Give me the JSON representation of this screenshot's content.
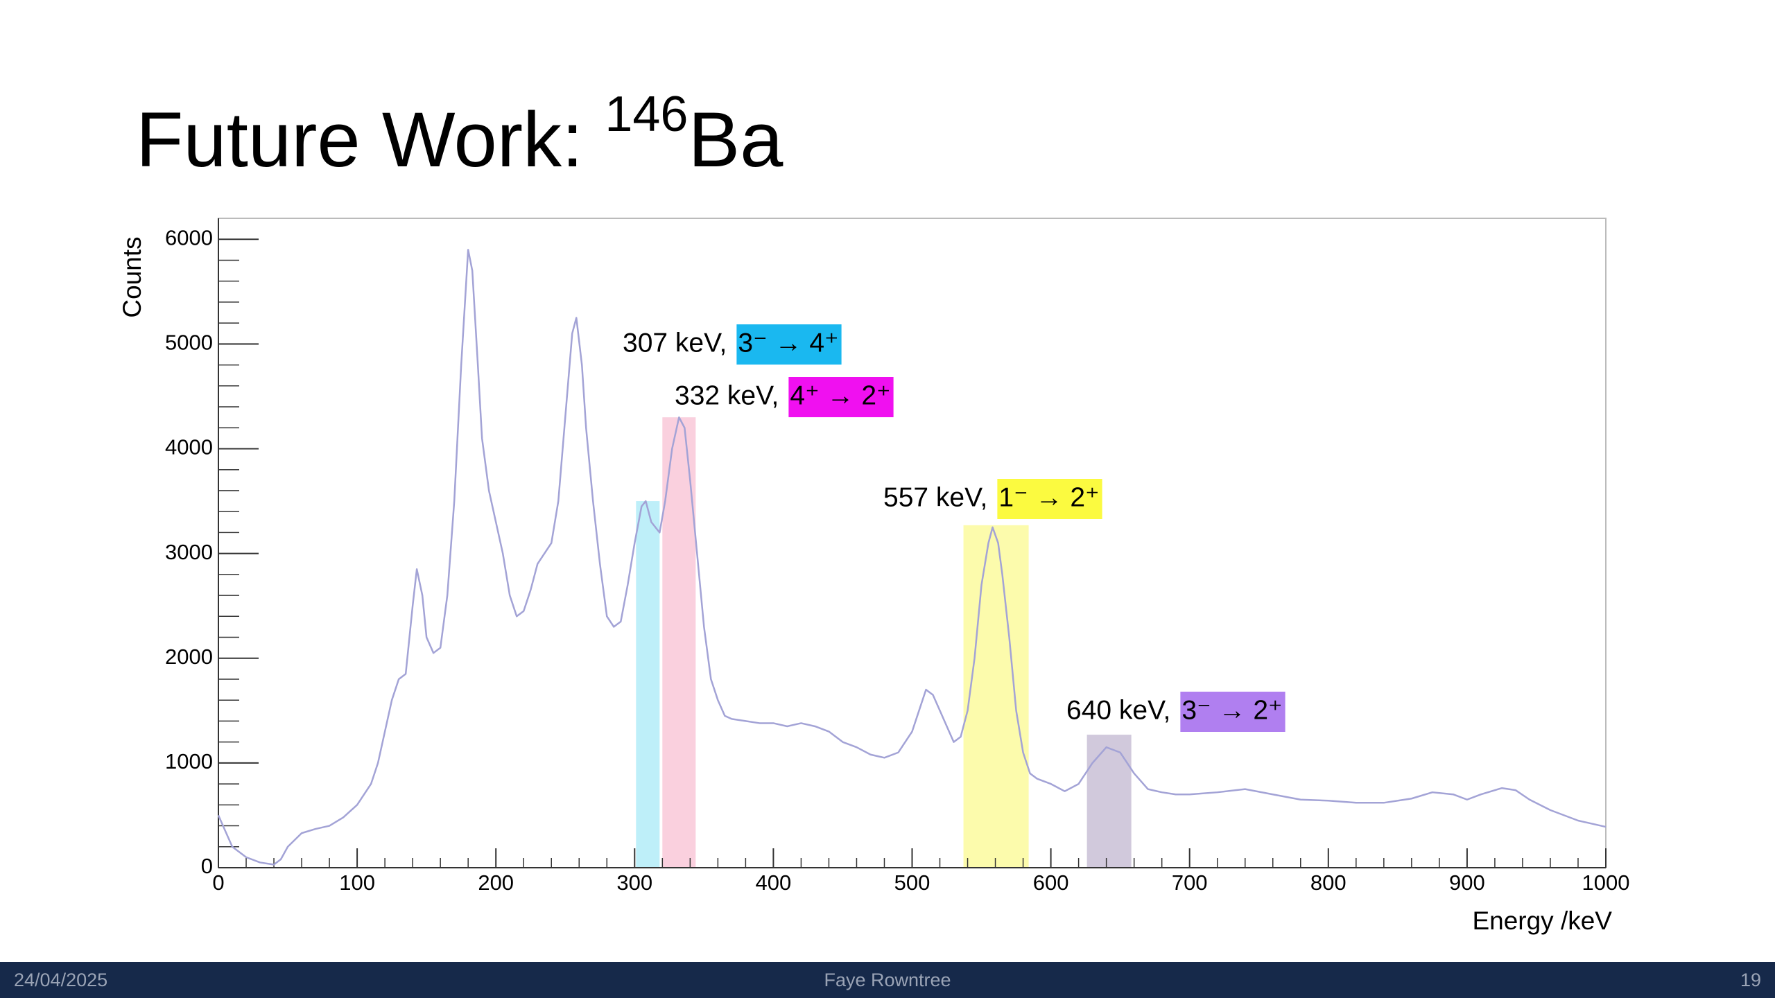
{
  "slide": {
    "title": "Future Work: ",
    "title_sup": "146",
    "title_end": "Ba",
    "footer_date": "24/04/2025",
    "footer_author": "Faye Rowntree",
    "footer_page": "19"
  },
  "chart_data": {
    "type": "line",
    "xlabel": "Energy /keV",
    "ylabel": "Counts",
    "color": "#a3a3d6",
    "xlim": [
      0,
      1000
    ],
    "ylim": [
      0,
      6200
    ],
    "xticks": [
      0,
      100,
      200,
      300,
      400,
      500,
      600,
      700,
      800,
      900,
      1000
    ],
    "yticks": [
      0,
      1000,
      2000,
      3000,
      4000,
      5000,
      6000
    ],
    "x": [
      0,
      5,
      10,
      20,
      30,
      40,
      45,
      50,
      60,
      70,
      80,
      90,
      100,
      110,
      115,
      120,
      125,
      130,
      135,
      140,
      143,
      147,
      150,
      155,
      160,
      165,
      170,
      175,
      180,
      183,
      187,
      190,
      195,
      200,
      205,
      210,
      215,
      220,
      225,
      230,
      235,
      240,
      245,
      250,
      255,
      258,
      262,
      265,
      270,
      275,
      280,
      285,
      290,
      295,
      300,
      305,
      308,
      312,
      318,
      322,
      327,
      332,
      336,
      340,
      345,
      350,
      355,
      360,
      365,
      370,
      380,
      390,
      400,
      410,
      420,
      430,
      440,
      450,
      460,
      470,
      480,
      490,
      500,
      505,
      510,
      515,
      520,
      525,
      530,
      535,
      540,
      545,
      550,
      555,
      558,
      562,
      565,
      570,
      575,
      580,
      585,
      590,
      600,
      610,
      620,
      625,
      630,
      640,
      650,
      655,
      660,
      670,
      680,
      690,
      700,
      720,
      740,
      760,
      780,
      800,
      820,
      840,
      860,
      875,
      890,
      900,
      910,
      925,
      935,
      945,
      960,
      980,
      1000
    ],
    "values": [
      500,
      350,
      200,
      100,
      50,
      30,
      80,
      200,
      330,
      370,
      400,
      480,
      600,
      800,
      1000,
      1300,
      1600,
      1800,
      1850,
      2500,
      2850,
      2600,
      2200,
      2050,
      2100,
      2600,
      3500,
      4800,
      5900,
      5700,
      4800,
      4100,
      3600,
      3300,
      3000,
      2600,
      2400,
      2450,
      2650,
      2900,
      3000,
      3100,
      3500,
      4300,
      5100,
      5250,
      4800,
      4200,
      3500,
      2900,
      2400,
      2300,
      2350,
      2700,
      3100,
      3450,
      3500,
      3300,
      3200,
      3500,
      4000,
      4300,
      4200,
      3700,
      3000,
      2300,
      1800,
      1600,
      1450,
      1420,
      1400,
      1380,
      1380,
      1350,
      1380,
      1350,
      1300,
      1200,
      1150,
      1080,
      1050,
      1100,
      1300,
      1500,
      1700,
      1650,
      1500,
      1350,
      1200,
      1250,
      1500,
      2000,
      2700,
      3100,
      3250,
      3100,
      2800,
      2200,
      1500,
      1100,
      900,
      850,
      800,
      730,
      800,
      900,
      1000,
      1150,
      1100,
      1000,
      900,
      750,
      720,
      700,
      700,
      720,
      750,
      700,
      650,
      640,
      620,
      620,
      660,
      720,
      700,
      650,
      700,
      760,
      740,
      650,
      550,
      450,
      390
    ],
    "highlights": [
      {
        "xlim": [
          301,
          318
        ],
        "top": 3500,
        "color": "#b3ecf8"
      },
      {
        "xlim": [
          320,
          344
        ],
        "top": 4300,
        "color": "#f9c8d8"
      },
      {
        "xlim": [
          537,
          584
        ],
        "top": 3270,
        "color": "#fbfa9e"
      },
      {
        "xlim": [
          626,
          658
        ],
        "top": 1270,
        "color": "#c9bfd6"
      }
    ],
    "annotations": [
      {
        "text": "307 keV,",
        "transition": "3⁻ → 4⁺",
        "color": "#1ab8f0"
      },
      {
        "text": "332 keV,",
        "transition": "4⁺ → 2⁺",
        "color": "#f010f0"
      },
      {
        "text": "557 keV,",
        "transition": "1⁻ → 2⁺",
        "color": "#fbfa40"
      },
      {
        "text": "640 keV,",
        "transition": "3⁻ → 2⁺",
        "color": "#b07ff0"
      }
    ]
  }
}
